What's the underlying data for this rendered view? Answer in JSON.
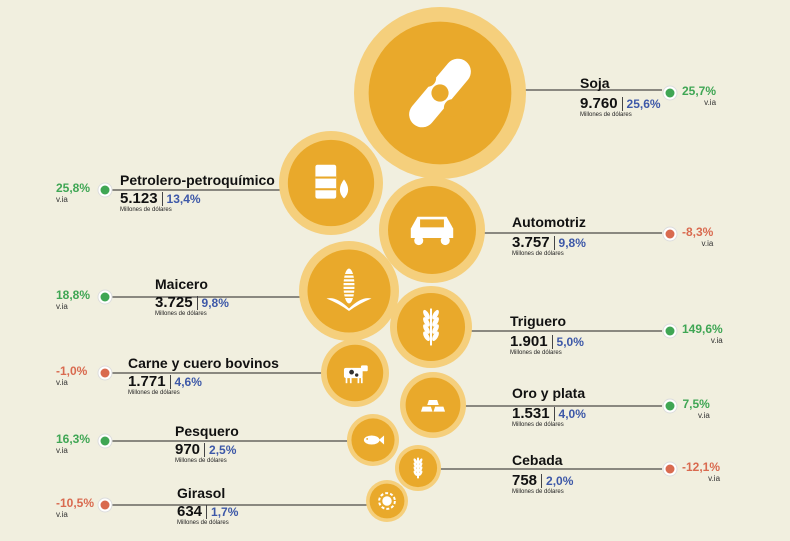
{
  "chart_data": {
    "type": "bubble",
    "unit": "Millones de dólares",
    "change_label": "v.ia",
    "items": [
      {
        "name": "Soja",
        "value": 9760,
        "value_label": "9.760",
        "share": "25,6%",
        "change": "25,7%",
        "trend": "up",
        "icon": "soybean-pod-icon"
      },
      {
        "name": "Petrolero-petroquímico",
        "value": 5123,
        "value_label": "5.123",
        "share": "13,4%",
        "change": "25,8%",
        "trend": "up",
        "icon": "oil-barrel-drop-icon"
      },
      {
        "name": "Automotriz",
        "value": 3757,
        "value_label": "3.757",
        "share": "9,8%",
        "change": "-8,3%",
        "trend": "down",
        "icon": "car-icon"
      },
      {
        "name": "Maicero",
        "value": 3725,
        "value_label": "3.725",
        "share": "9,8%",
        "change": "18,8%",
        "trend": "up",
        "icon": "corn-icon"
      },
      {
        "name": "Triguero",
        "value": 1901,
        "value_label": "1.901",
        "share": "5,0%",
        "change": "149,6%",
        "trend": "up",
        "icon": "wheat-icon"
      },
      {
        "name": "Carne y cuero bovinos",
        "value": 1771,
        "value_label": "1.771",
        "share": "4,6%",
        "change": "-1,0%",
        "trend": "down",
        "icon": "cow-icon"
      },
      {
        "name": "Oro y plata",
        "value": 1531,
        "value_label": "1.531",
        "share": "4,0%",
        "change": "7,5%",
        "trend": "up",
        "icon": "gold-bars-icon"
      },
      {
        "name": "Pesquero",
        "value": 970,
        "value_label": "970",
        "share": "2,5%",
        "change": "16,3%",
        "trend": "up",
        "icon": "fish-icon"
      },
      {
        "name": "Cebada",
        "value": 758,
        "value_label": "758",
        "share": "2,0%",
        "change": "-12,1%",
        "trend": "down",
        "icon": "barley-icon"
      },
      {
        "name": "Girasol",
        "value": 634,
        "value_label": "634",
        "share": "1,7%",
        "change": "-10,5%",
        "trend": "down",
        "icon": "sunflower-icon"
      }
    ]
  },
  "colors": {
    "background": "#f1efdf",
    "bubble_core": "#e9a92b",
    "bubble_ring": "#f5cf7c",
    "share_text": "#3d58a8",
    "up": "#3fa654",
    "down": "#d96a4f"
  }
}
